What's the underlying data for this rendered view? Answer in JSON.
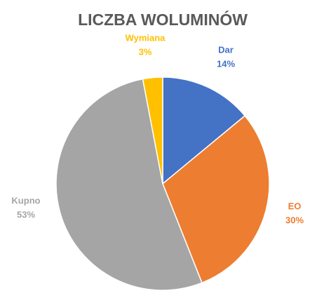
{
  "chart_data": {
    "type": "pie",
    "title": "LICZBA WOLUMINÓW",
    "categories": [
      "Dar",
      "EO",
      "Kupno",
      "Wymiana"
    ],
    "values": [
      14,
      30,
      53,
      3
    ],
    "value_labels": [
      "14%",
      "30%",
      "53%",
      "3%"
    ],
    "colors": [
      "#4472c4",
      "#ed7d31",
      "#a5a5a5",
      "#ffc000"
    ]
  }
}
